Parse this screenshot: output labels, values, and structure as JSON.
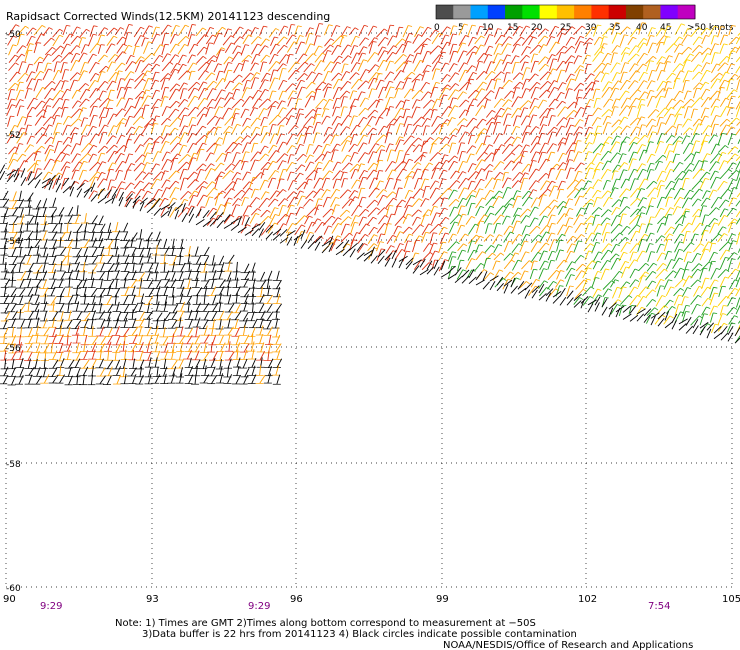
{
  "title": "Rapidsact Corrected Winds(12.5KM) 20141123 descending",
  "legend": {
    "labels": [
      "0",
      "5",
      "10",
      "15",
      "20",
      "25",
      "30",
      "35",
      "40",
      "45",
      ">50 knots"
    ],
    "colors": [
      "#4d4d4d",
      "#9a9a9a",
      "#00a0ff",
      "#0040ff",
      "#00a000",
      "#00e000",
      "#ffff00",
      "#ffc000",
      "#ff8000",
      "#ff3000",
      "#cc0000",
      "#804000",
      "#b06020",
      "#8000ff",
      "#c000c0"
    ]
  },
  "axes": {
    "lat_labels": [
      "-50",
      "-52",
      "-54",
      "-56",
      "-58",
      "-60"
    ],
    "lon_labels": [
      "90",
      "93",
      "96",
      "99",
      "102",
      "105"
    ],
    "time_labels": [
      "9:29",
      "9:29",
      "7:54"
    ]
  },
  "notes": {
    "line1": "Note: 1) Times are GMT 2)Times along bottom correspond to measurement at −50S",
    "line2": "3)Data buffer is 22 hrs from 20141123 4) Black circles indicate possible contamination",
    "credit": "NOAA/NESDIS/Office of Research and Applications"
  },
  "colors": {
    "grid": "#000000",
    "time_text": "#800080",
    "contaminated": "#000000",
    "strong_wind": "#e03010",
    "moderate_wind": "#ffa000",
    "weak_wind": "#20a020"
  }
}
